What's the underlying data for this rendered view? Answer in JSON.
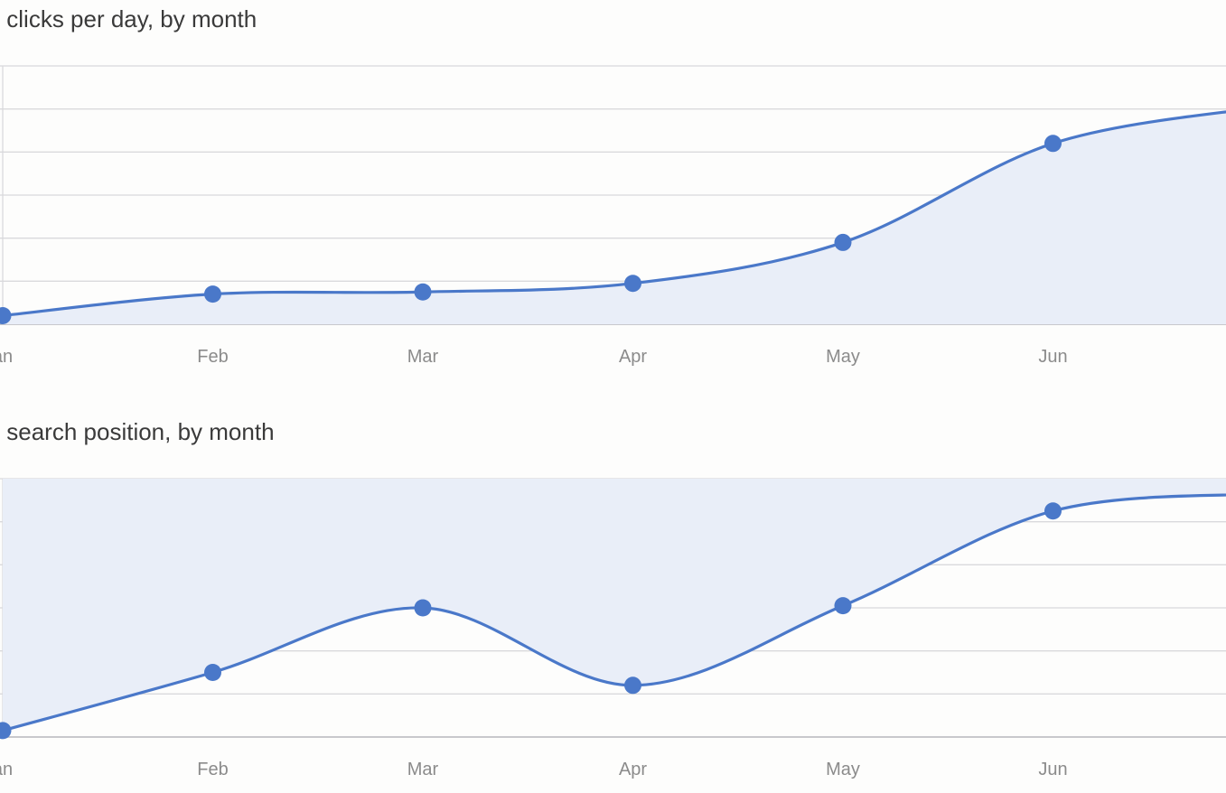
{
  "colors": {
    "line": "#4a78c9",
    "area": "#e9eef8",
    "grid": "#d9d9dc",
    "axis": "#c8c8cc",
    "tick_text": "#8b8b8b",
    "title_text": "#3a3a3a"
  },
  "chart_data": [
    {
      "type": "area",
      "title": "rage clicks per day, by month",
      "categories": [
        "an",
        "Feb",
        "Mar",
        "Apr",
        "May",
        "Jun",
        ""
      ],
      "series": [
        {
          "values": [
            0.2,
            0.7,
            0.75,
            0.95,
            1.9,
            4.2,
            5.05
          ]
        }
      ],
      "ylim": [
        0,
        6
      ],
      "grid": true,
      "markers_on_categories": [
        "an",
        "Feb",
        "Mar",
        "Apr",
        "May",
        "Jun"
      ]
    },
    {
      "type": "area",
      "title": "rage search position, by month",
      "categories": [
        "an",
        "Feb",
        "Mar",
        "Apr",
        "May",
        "Jun",
        ""
      ],
      "series": [
        {
          "values": [
            0.15,
            1.5,
            3.0,
            1.2,
            3.05,
            5.25,
            5.65
          ]
        }
      ],
      "ylim": [
        0,
        6
      ],
      "grid": true,
      "fill_from": "top",
      "markers_on_categories": [
        "an",
        "Feb",
        "Mar",
        "Apr",
        "May",
        "Jun"
      ]
    }
  ]
}
